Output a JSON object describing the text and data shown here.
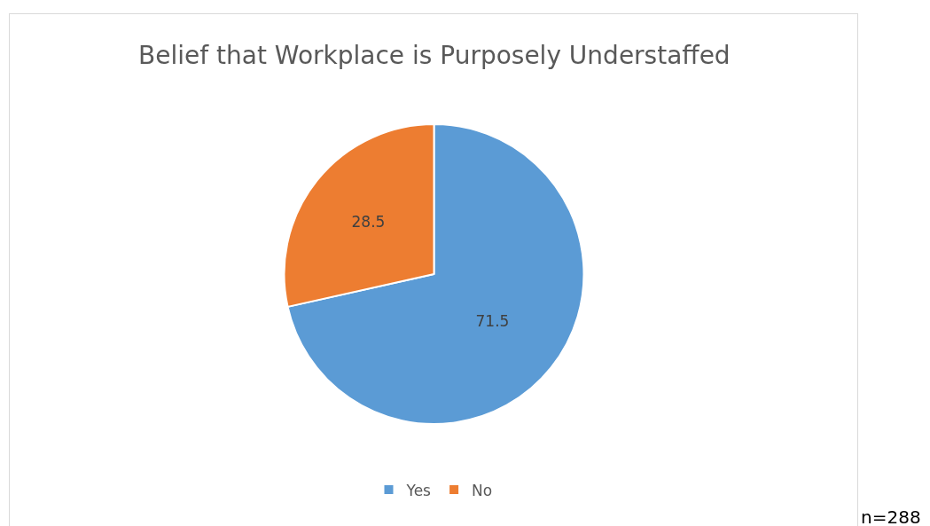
{
  "chart_data": {
    "type": "pie",
    "title": "Belief that Workplace is Purposely Understaffed",
    "categories": [
      "Yes",
      "No"
    ],
    "values": [
      71.5,
      28.5
    ],
    "colors": [
      "#5b9bd5",
      "#ed7d31"
    ],
    "data_labels": true,
    "legend": "bottom",
    "annotations": [
      "n=288"
    ]
  }
}
